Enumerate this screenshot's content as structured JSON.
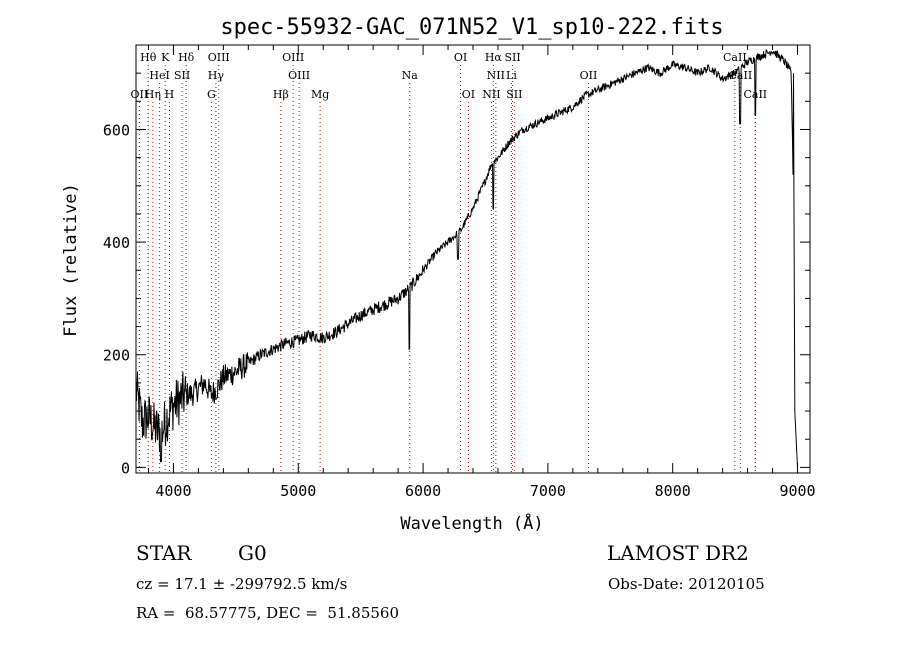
{
  "chart_data": {
    "type": "line",
    "title": "spec-55932-GAC_071N52_V1_sp10-222.fits",
    "xlabel": "Wavelength (Å)",
    "ylabel": "Flux (relative)",
    "xlim": [
      3700,
      9100
    ],
    "ylim": [
      -10,
      750
    ],
    "x_ticks": [
      4000,
      5000,
      6000,
      7000,
      8000,
      9000
    ],
    "y_ticks": [
      0,
      200,
      400,
      600
    ],
    "grid": false,
    "series": [
      {
        "x": [
          3700,
          3750,
          3800,
          3850,
          3900,
          3950,
          4000,
          4050,
          4100,
          4150,
          4200,
          4250,
          4300,
          4350,
          4400,
          4500,
          4600,
          4700,
          4800,
          4900,
          5000,
          5100,
          5200,
          5300,
          5400,
          5500,
          5600,
          5700,
          5800,
          5900,
          6000,
          6100,
          6200,
          6300,
          6400,
          6500,
          6550,
          6600,
          6700,
          6800,
          6900,
          7000,
          7100,
          7200,
          7300,
          7400,
          7500,
          7600,
          7700,
          7800,
          7900,
          8000,
          8100,
          8200,
          8300,
          8400,
          8500,
          8600,
          8700,
          8800,
          8900,
          8950,
          8970,
          9000
        ],
        "y": [
          140,
          80,
          90,
          70,
          60,
          90,
          110,
          120,
          130,
          130,
          140,
          150,
          130,
          140,
          160,
          170,
          185,
          200,
          210,
          220,
          225,
          235,
          230,
          240,
          255,
          270,
          280,
          290,
          300,
          320,
          350,
          380,
          400,
          420,
          460,
          510,
          540,
          550,
          580,
          600,
          610,
          620,
          630,
          640,
          660,
          670,
          680,
          690,
          700,
          710,
          700,
          715,
          710,
          700,
          710,
          690,
          700,
          720,
          730,
          740,
          720,
          700,
          450,
          0
        ]
      }
    ],
    "absorption_features": [
      {
        "x": 6563,
        "y": 460
      },
      {
        "x": 5890,
        "y": 210
      },
      {
        "x": 6280,
        "y": 370
      },
      {
        "x": 8540,
        "y": 610
      },
      {
        "x": 8662,
        "y": 625
      },
      {
        "x": 3900,
        "y": 10
      }
    ],
    "line_markers": [
      {
        "label": "Hθ",
        "x": 3798,
        "row": 0
      },
      {
        "label": "K",
        "x": 3934,
        "row": 0
      },
      {
        "label": "Hδ",
        "x": 4102,
        "row": 0
      },
      {
        "label": "OIII",
        "x": 4363,
        "row": 0
      },
      {
        "label": "OIII",
        "x": 4959,
        "row": 0
      },
      {
        "label": "OI",
        "x": 6300,
        "row": 0
      },
      {
        "label": "Hα",
        "x": 6563,
        "row": 0
      },
      {
        "label": "SII",
        "x": 6717,
        "row": 0
      },
      {
        "label": "CaII",
        "x": 8498,
        "row": 0
      },
      {
        "label": "HeI",
        "x": 3889,
        "row": 1
      },
      {
        "label": "SII",
        "x": 4069,
        "row": 1
      },
      {
        "label": "Hγ",
        "x": 4340,
        "row": 1
      },
      {
        "label": "OIII",
        "x": 5007,
        "row": 1
      },
      {
        "label": "NII",
        "x": 6583,
        "row": 1
      },
      {
        "label": "Li",
        "x": 6708,
        "row": 1
      },
      {
        "label": "OII",
        "x": 7325,
        "row": 1
      },
      {
        "label": "CaII",
        "x": 8542,
        "row": 1
      },
      {
        "label": "OII",
        "x": 3727,
        "row": 2
      },
      {
        "label": "Hη",
        "x": 3835,
        "row": 2
      },
      {
        "label": "H",
        "x": 3968,
        "row": 2
      },
      {
        "label": "G",
        "x": 4304,
        "row": 2
      },
      {
        "label": "Hβ",
        "x": 4861,
        "row": 2
      },
      {
        "label": "Mg",
        "x": 5175,
        "row": 2
      },
      {
        "label": "Na",
        "x": 5893,
        "row": 1
      },
      {
        "label": "OI",
        "x": 6363,
        "row": 2
      },
      {
        "label": "NII",
        "x": 6548,
        "row": 2
      },
      {
        "label": "SII",
        "x": 6731,
        "row": 2
      },
      {
        "label": "CaII",
        "x": 8662,
        "row": 2
      }
    ],
    "line_marker_color": "#cc0000",
    "line_color": "#000000"
  },
  "footer": {
    "class_label": "STAR",
    "subclass": "G0",
    "survey": "LAMOST DR2",
    "cz": "cz = 17.1 ± -299792.5 km/s",
    "obs_date": "Obs-Date: 20120105",
    "coords": "RA =  68.57775, DEC =  51.85560"
  }
}
